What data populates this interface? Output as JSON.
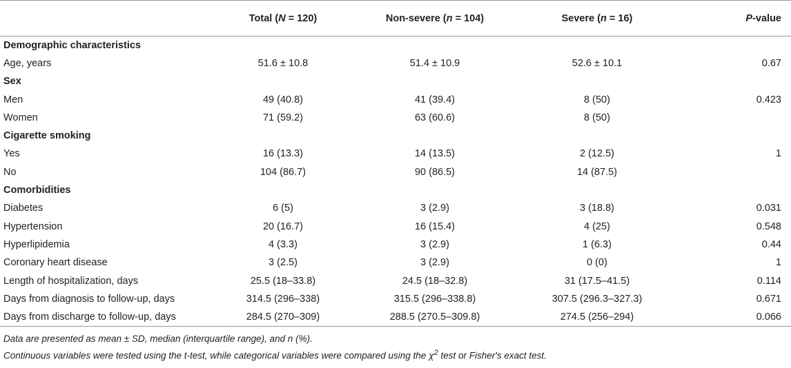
{
  "header": {
    "col0": "",
    "total": {
      "pre": "Total (",
      "var": "N",
      "post": " = 120)"
    },
    "nonsevere": {
      "pre": "Non-severe (",
      "var": "n",
      "post": " = 104)"
    },
    "severe": {
      "pre": "Severe (",
      "var": "n",
      "post": " = 16)"
    },
    "pvalue": {
      "var": "P",
      "post": "-value"
    }
  },
  "rows": [
    {
      "type": "section",
      "label": "Demographic characteristics"
    },
    {
      "type": "data",
      "label": "Age, years",
      "total": "51.6 ± 10.8",
      "nonsevere": "51.4 ± 10.9",
      "severe": "52.6 ± 10.1",
      "p": "0.67"
    },
    {
      "type": "section",
      "label": "Sex"
    },
    {
      "type": "data",
      "label": "Men",
      "total": "49 (40.8)",
      "nonsevere": "41 (39.4)",
      "severe": "8 (50)",
      "p": "0.423"
    },
    {
      "type": "data",
      "label": "Women",
      "total": "71 (59.2)",
      "nonsevere": "63 (60.6)",
      "severe": "8 (50)",
      "p": ""
    },
    {
      "type": "section",
      "label": "Cigarette smoking"
    },
    {
      "type": "data",
      "label": "Yes",
      "total": "16 (13.3)",
      "nonsevere": "14 (13.5)",
      "severe": "2 (12.5)",
      "p": "1"
    },
    {
      "type": "data",
      "label": "No",
      "total": "104 (86.7)",
      "nonsevere": "90 (86.5)",
      "severe": "14 (87.5)",
      "p": ""
    },
    {
      "type": "section",
      "label": "Comorbidities"
    },
    {
      "type": "data",
      "label": "Diabetes",
      "total": "6 (5)",
      "nonsevere": "3 (2.9)",
      "severe": "3 (18.8)",
      "p": "0.031"
    },
    {
      "type": "data",
      "label": "Hypertension",
      "total": "20 (16.7)",
      "nonsevere": "16 (15.4)",
      "severe": "4 (25)",
      "p": "0.548"
    },
    {
      "type": "data",
      "label": "Hyperlipidemia",
      "total": "4 (3.3)",
      "nonsevere": "3 (2.9)",
      "severe": "1 (6.3)",
      "p": "0.44"
    },
    {
      "type": "data",
      "label": "Coronary heart disease",
      "total": "3 (2.5)",
      "nonsevere": "3 (2.9)",
      "severe": "0 (0)",
      "p": "1"
    },
    {
      "type": "data",
      "label": "Length of hospitalization, days",
      "total": "25.5 (18–33.8)",
      "nonsevere": "24.5 (18–32.8)",
      "severe": "31 (17.5–41.5)",
      "p": "0.114"
    },
    {
      "type": "data",
      "label": "Days from diagnosis to follow-up, days",
      "total": "314.5 (296–338)",
      "nonsevere": "315.5 (296–338.8)",
      "severe": "307.5 (296.3–327.3)",
      "p": "0.671"
    },
    {
      "type": "data",
      "label": "Days from discharge to follow-up, days",
      "total": "284.5 (270–309)",
      "nonsevere": "288.5 (270.5–309.8)",
      "severe": "274.5 (256–294)",
      "p": "0.066"
    }
  ],
  "notes": {
    "line1": "Data are presented as mean ± SD, median (interquartile range), and n (%).",
    "line2_pre": "Continuous variables were tested using the t-test, while categorical variables were compared using the χ",
    "line2_sup": "2",
    "line2_post": " test or Fisher's exact test."
  }
}
